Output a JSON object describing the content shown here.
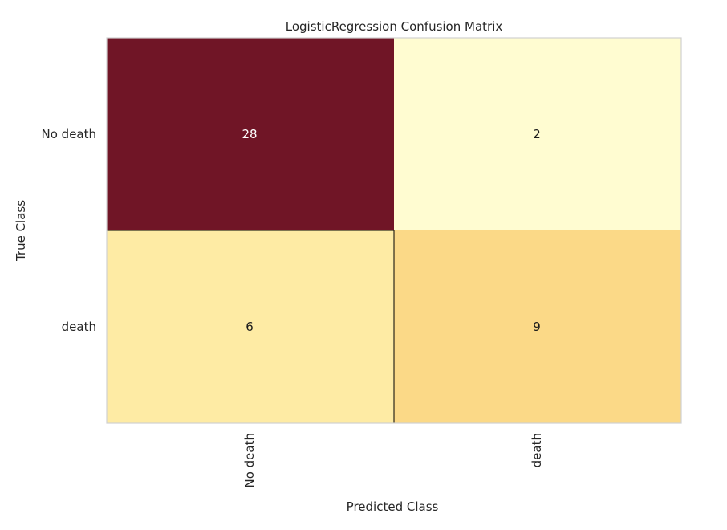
{
  "chart_data": {
    "type": "heatmap",
    "title": "LogisticRegression Confusion Matrix",
    "xlabel": "Predicted Class",
    "ylabel": "True Class",
    "x_categories": [
      "No death",
      "death"
    ],
    "y_categories": [
      "No death",
      "death"
    ],
    "values": [
      [
        28,
        2
      ],
      [
        6,
        9
      ]
    ],
    "cell_labels": [
      [
        "28",
        "2"
      ],
      [
        "6",
        "9"
      ]
    ],
    "colors": [
      [
        "#701526",
        "#fffcd1"
      ],
      [
        "#feeba4",
        "#fbd987"
      ]
    ],
    "text_colors": [
      [
        "#ffffff",
        "#1a1a1a"
      ],
      [
        "#1a1a1a",
        "#1a1a1a"
      ]
    ],
    "grid_line_color": "#000000",
    "frame_color": "#d0d0d0",
    "colormap": "YlOrRd",
    "grid": false
  }
}
